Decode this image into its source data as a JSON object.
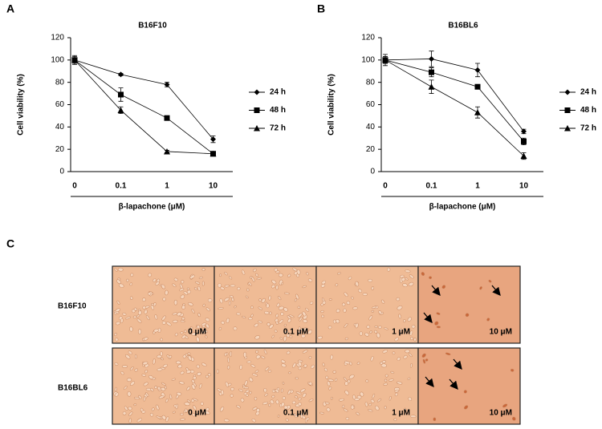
{
  "chart_data": [
    {
      "type": "line",
      "panel_label": "A",
      "title": "B16F10",
      "x_label": "β-lapachone (μM)",
      "y_label": "Cell viability (%)",
      "categories": [
        "0",
        "0.1",
        "1",
        "10"
      ],
      "ylim": [
        0,
        120
      ],
      "yticks": [
        0,
        20,
        40,
        60,
        80,
        100,
        120
      ],
      "legend": "right",
      "series": [
        {
          "name": "24 h",
          "color": "#000000",
          "marker": "diamond",
          "values": [
            100,
            87,
            78,
            29
          ],
          "errors": [
            1,
            1,
            2,
            3
          ]
        },
        {
          "name": "48 h",
          "color": "#000000",
          "marker": "square",
          "values": [
            100,
            69,
            48,
            16
          ],
          "errors": [
            3,
            6,
            1,
            2
          ]
        },
        {
          "name": "72 h",
          "color": "#000000",
          "marker": "triangle",
          "values": [
            100,
            55,
            18,
            16
          ],
          "errors": [
            4,
            3,
            1,
            2
          ]
        }
      ]
    },
    {
      "type": "line",
      "panel_label": "B",
      "title": "B16BL6",
      "x_label": "β-lapachone (μM)",
      "y_label": "Cell viability (%)",
      "categories": [
        "0",
        "0.1",
        "1",
        "10"
      ],
      "ylim": [
        0,
        120
      ],
      "yticks": [
        0,
        20,
        40,
        60,
        80,
        100,
        120
      ],
      "legend": "right",
      "series": [
        {
          "name": "24 h",
          "color": "#000000",
          "marker": "diamond",
          "values": [
            100,
            101,
            91,
            36
          ],
          "errors": [
            3,
            7,
            6,
            2
          ]
        },
        {
          "name": "48 h",
          "color": "#000000",
          "marker": "square",
          "values": [
            100,
            89,
            76,
            27
          ],
          "errors": [
            3,
            4,
            1,
            3
          ]
        },
        {
          "name": "72 h",
          "color": "#000000",
          "marker": "triangle",
          "values": [
            100,
            76,
            53,
            14
          ],
          "errors": [
            5,
            6,
            5,
            3
          ]
        }
      ]
    }
  ],
  "panel_c": {
    "panel_label": "C",
    "rows": [
      "B16F10",
      "B16BL6"
    ],
    "columns": [
      "0 μM",
      "0.1 μM",
      "1 μM",
      "10 μM"
    ]
  }
}
